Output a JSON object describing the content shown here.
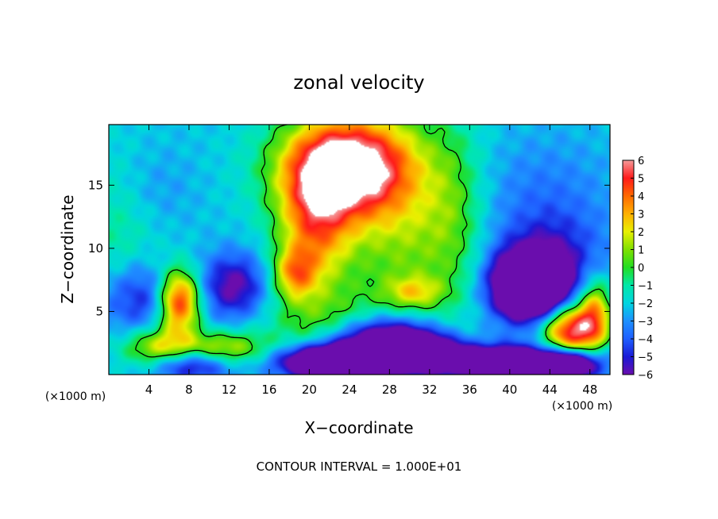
{
  "chart_data": {
    "type": "heatmap",
    "title": "zonal velocity",
    "xlabel": "X−coordinate",
    "ylabel": "Z−coordinate",
    "x_unit_left": "(×1000 m)",
    "x_unit_right": "(×1000 m)",
    "footer": "CONTOUR INTERVAL = 1.000E+01",
    "xlim": [
      0,
      50
    ],
    "ylim": [
      0,
      19.8
    ],
    "x_ticks": [
      4,
      8,
      12,
      16,
      20,
      24,
      28,
      32,
      36,
      40,
      44,
      48
    ],
    "x_tick_labels": [
      "4",
      "8",
      "12",
      "16",
      "20",
      "24",
      "28",
      "32",
      "36",
      "40",
      "44",
      "48"
    ],
    "y_ticks": [
      5,
      10,
      15
    ],
    "y_tick_labels": [
      "5",
      "10",
      "15"
    ],
    "colorbar": {
      "min": -6,
      "max": 6,
      "ticks": [
        6,
        5,
        4,
        3,
        2,
        1,
        0,
        -1,
        -2,
        -3,
        -4,
        -5,
        -6
      ],
      "tick_labels": [
        "6",
        "5",
        "4",
        "3",
        "2",
        "1",
        "0",
        "−1",
        "−2",
        "−3",
        "−4",
        "−5",
        "−6"
      ],
      "colors": [
        "#6a0dad",
        "#1a1ad6",
        "#1f5fff",
        "#1e90ff",
        "#00d5e0",
        "#00e8a8",
        "#22dd22",
        "#7fe000",
        "#e8f000",
        "#ffb000",
        "#ff6a00",
        "#ff1a1a",
        "#f59a9a"
      ],
      "over_color": "#ffffff"
    },
    "field": {
      "background": -2.2,
      "features": [
        {
          "x": 23.5,
          "z": 16.5,
          "sx": 4.5,
          "sz": 2.8,
          "v": 9.5
        },
        {
          "x": 20.5,
          "z": 11.5,
          "sx": 2.6,
          "sz": 3.5,
          "v": 5.0
        },
        {
          "x": 18.5,
          "z": 8.0,
          "sx": 1.5,
          "sz": 1.4,
          "v": 4.0
        },
        {
          "x": 29.5,
          "z": 11.5,
          "sx": 4.5,
          "sz": 6.0,
          "v": 3.0
        },
        {
          "x": 21.0,
          "z": 4.0,
          "sx": 4.0,
          "sz": 2.0,
          "v": 2.2
        },
        {
          "x": 26.0,
          "z": 3.0,
          "sx": 3.0,
          "sz": 1.5,
          "v": 2.5
        },
        {
          "x": 30.5,
          "z": 6.5,
          "sx": 2.0,
          "sz": 0.9,
          "v": 2.8
        },
        {
          "x": 7.0,
          "z": 5.8,
          "sx": 1.5,
          "sz": 1.8,
          "v": 8.0
        },
        {
          "x": 5.0,
          "z": 2.0,
          "sx": 2.5,
          "sz": 1.2,
          "v": 4.5
        },
        {
          "x": 11.5,
          "z": 2.0,
          "sx": 3.0,
          "sz": 1.0,
          "v": 4.0
        },
        {
          "x": 3.5,
          "z": 6.0,
          "sx": 3.0,
          "sz": 2.0,
          "v": -3.0
        },
        {
          "x": 1.0,
          "z": 12.0,
          "sx": 3.0,
          "sz": 4.0,
          "v": 1.5
        },
        {
          "x": 12.5,
          "z": 7.0,
          "sx": 2.3,
          "sz": 1.8,
          "v": -4.0
        },
        {
          "x": 8.0,
          "z": 0.8,
          "sx": 3.0,
          "sz": 0.9,
          "v": -4.5
        },
        {
          "x": 27.0,
          "z": 2.5,
          "sx": 3.5,
          "sz": 1.5,
          "v": -10.0
        },
        {
          "x": 22.0,
          "z": 1.0,
          "sx": 3.5,
          "sz": 0.9,
          "v": -9.0
        },
        {
          "x": 31.5,
          "z": 1.8,
          "sx": 2.5,
          "sz": 1.0,
          "v": -6.0
        },
        {
          "x": 39.5,
          "z": 1.0,
          "sx": 5.0,
          "sz": 0.9,
          "v": -8.0
        },
        {
          "x": 42.0,
          "z": 7.0,
          "sx": 2.5,
          "sz": 1.8,
          "v": -10.0
        },
        {
          "x": 44.0,
          "z": 9.0,
          "sx": 4.0,
          "sz": 3.0,
          "v": -3.0
        },
        {
          "x": 46.0,
          "z": 3.5,
          "sx": 2.0,
          "sz": 1.5,
          "v": 8.0
        },
        {
          "x": 48.5,
          "z": 5.0,
          "sx": 1.2,
          "sz": 2.0,
          "v": 5.0
        },
        {
          "x": 46.0,
          "z": 0.8,
          "sx": 2.0,
          "sz": 0.8,
          "v": -6.0
        },
        {
          "x": 4.0,
          "z": 14.5,
          "sx": 3.0,
          "sz": 2.5,
          "v": -1.0
        },
        {
          "x": 43.0,
          "z": 15.0,
          "sx": 5.0,
          "sz": 3.0,
          "v": -1.0
        },
        {
          "x": 34.5,
          "z": 13.0,
          "sx": 2.0,
          "sz": 5.0,
          "v": 1.5
        }
      ]
    }
  }
}
